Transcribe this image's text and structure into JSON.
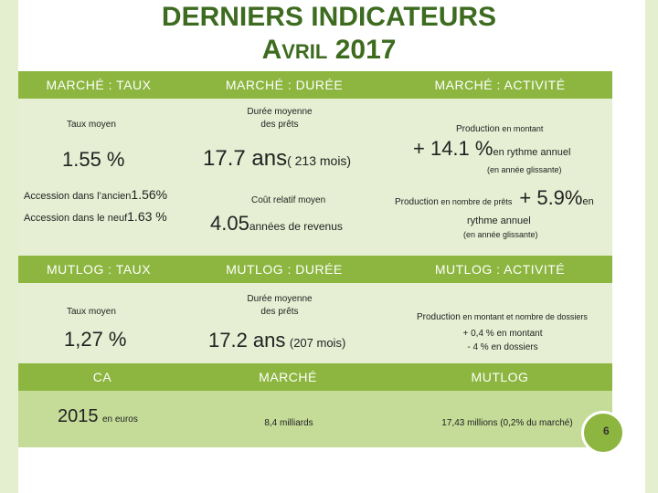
{
  "title": {
    "line1": "DERNIERS INDICATEURS",
    "line2_first": "A",
    "line2_rest": "VRIL",
    "line2_year": " 2017"
  },
  "headers": {
    "marche_taux": "MARCHÉ : TAUX",
    "marche_duree": "MARCHÉ : DURÉE",
    "marche_activite": "MARCHÉ : ACTIVITÉ",
    "mutlog_taux": "MUTLOG : TAUX",
    "mutlog_duree": "MUTLOG : DURÉE",
    "mutlog_activite": "MUTLOG : ACTIVITÉ",
    "ca": "CA",
    "marche": "MARCHÉ",
    "mutlog": "MUTLOG"
  },
  "marche": {
    "taux_label": "Taux moyen",
    "taux_value": "1.55 %",
    "ancien_label": "Accession dans l’ancien",
    "ancien_value": "1.56%",
    "neuf_label": "Accession dans le neuf",
    "neuf_value": "1.63 %",
    "duree_label_1": "Durée moyenne",
    "duree_label_2": "des prêts",
    "duree_value": "17.7 ans",
    "duree_months": "( 213 mois)",
    "cout_label": "Coût relatif moyen",
    "cout_value": "4.05",
    "cout_unit": "années de revenus",
    "activite_label_a": "Production",
    "activite_label_b": " en montant",
    "activite_value": "+ 14.1 %",
    "activite_suffix": "en rythme annuel",
    "activite_note": "(en année glissante)",
    "prod_label_a": "Production",
    "prod_label_b": " en nombre de prêts",
    "prod_value": "+ 5.9%",
    "prod_suffix": "en",
    "prod_suffix_2": "rythme annuel",
    "prod_note": "(en année glissante)"
  },
  "mutlog": {
    "taux_label": "Taux moyen",
    "taux_value": "1,27 %",
    "duree_label_1": "Durée moyenne",
    "duree_label_2": "des prêts",
    "duree_value": "17.2 ans",
    "duree_months": "(207 mois)",
    "activite_label_a": "Production",
    "activite_label_b": " en montant et nombre de dossiers",
    "activite_line1": "+ 0,4 % en montant",
    "activite_line2": "- 4 % en dossiers"
  },
  "ca": {
    "year": "2015",
    "unit": "en euros",
    "marche_value": "8,4 milliards",
    "mutlog_value": "17,43 millions (0,2% du marché)"
  },
  "colors": {
    "title": "#3d6b1f",
    "header_band": "#8cb63f",
    "light_band": "#e6efd3",
    "mid_band": "#c5dc98",
    "side_bar": "#e4efcf"
  },
  "badge": {
    "page_number": "6"
  }
}
